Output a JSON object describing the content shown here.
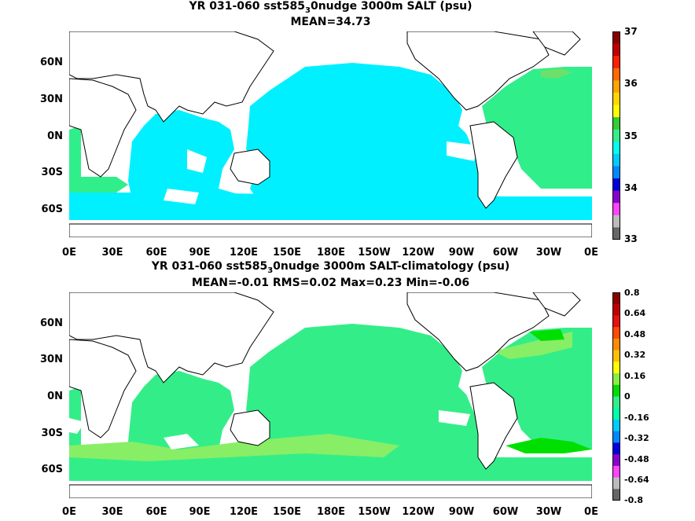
{
  "panel1": {
    "title_line1": "YR 031-060 sst585",
    "title_sub": "3",
    "title_line1_rest": "0nudge 3000m SALT (psu)",
    "title_line2": "MEAN=34.73",
    "colorbar_labels": [
      "37",
      "36",
      "35",
      "34",
      "33"
    ],
    "colors": [
      "#8b0000",
      "#c00000",
      "#ff2000",
      "#ff6a00",
      "#ffa500",
      "#ffd700",
      "#ffff00",
      "#33cc33",
      "#33ee88",
      "#00ffee",
      "#00ccff",
      "#0088ff",
      "#0000dd",
      "#8800cc",
      "#ff44ff",
      "#bbbbbb",
      "#666666"
    ]
  },
  "panel2": {
    "title_line1": "YR 031-060 sst585",
    "title_sub": "3",
    "title_line1_rest": "0nudge 3000m SALT-climatology (psu)",
    "title_line2": "MEAN=-0.01   RMS=0.02   Max=0.23   Min=-0.06",
    "colorbar_labels": [
      "0.8",
      "0.64",
      "0.48",
      "0.32",
      "0.16",
      "0",
      "-0.16",
      "-0.32",
      "-0.48",
      "-0.64",
      "-0.8"
    ],
    "colors": [
      "#8b0000",
      "#c00000",
      "#e81010",
      "#ff4a00",
      "#ff8c00",
      "#ffc000",
      "#ffff00",
      "#88ee44",
      "#00dd00",
      "#33ee88",
      "#00ffaa",
      "#00ccff",
      "#0088ff",
      "#0000dd",
      "#8800cc",
      "#ff44ff",
      "#bbbbbb",
      "#666666"
    ]
  },
  "lat_labels": [
    "60N",
    "30N",
    "0N",
    "30S",
    "60S"
  ],
  "lon_labels": [
    "0E",
    "30E",
    "60E",
    "90E",
    "120E",
    "150E",
    "180E",
    "150W",
    "120W",
    "90W",
    "60W",
    "30W",
    "0E"
  ],
  "fill_colors": {
    "panel1_ocean": "#00f0ff",
    "panel1_atlantic": "#30ee8a",
    "panel1_hi": "#6ee06a",
    "panel2_ocean": "#33ee88",
    "panel2_light": "#88ee66",
    "panel2_hi": "#00e000"
  }
}
